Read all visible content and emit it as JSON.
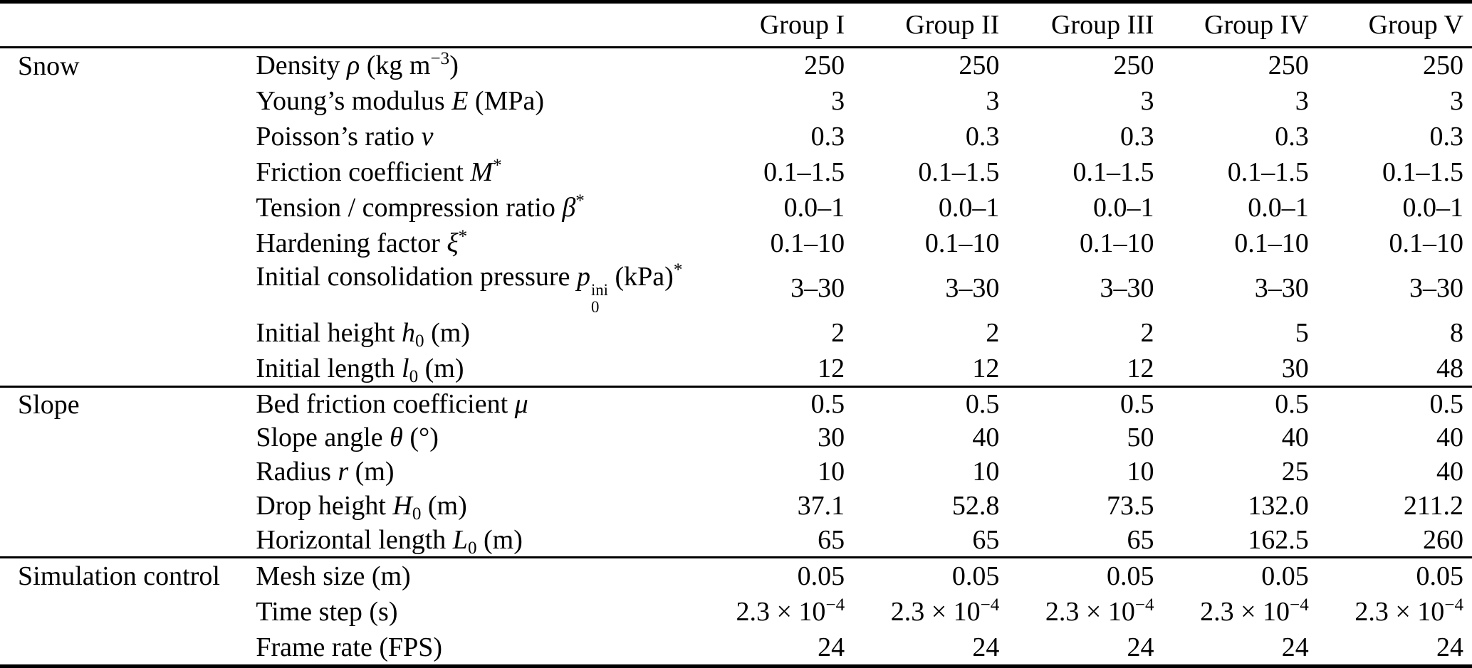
{
  "table": {
    "header": {
      "groups": [
        "Group I",
        "Group II",
        "Group III",
        "Group IV",
        "Group V"
      ]
    },
    "sections": [
      {
        "name": "Snow",
        "rows": [
          {
            "label": [
              {
                "t": "Density "
              },
              {
                "t": "ρ",
                "i": true
              },
              {
                "t": " (kg m"
              },
              {
                "t": "−3",
                "sup": true
              },
              {
                "t": ")"
              }
            ],
            "values": [
              "250",
              "250",
              "250",
              "250",
              "250"
            ]
          },
          {
            "label": [
              {
                "t": "Young’s modulus "
              },
              {
                "t": "E",
                "i": true
              },
              {
                "t": " (MPa)"
              }
            ],
            "values": [
              "3",
              "3",
              "3",
              "3",
              "3"
            ]
          },
          {
            "label": [
              {
                "t": "Poisson’s ratio "
              },
              {
                "t": "ν",
                "i": true
              }
            ],
            "values": [
              "0.3",
              "0.3",
              "0.3",
              "0.3",
              "0.3"
            ]
          },
          {
            "label": [
              {
                "t": "Friction coefficient "
              },
              {
                "t": "M",
                "i": true
              },
              {
                "t": "*",
                "sup": true
              }
            ],
            "values": [
              "0.1–1.5",
              "0.1–1.5",
              "0.1–1.5",
              "0.1–1.5",
              "0.1–1.5"
            ]
          },
          {
            "label": [
              {
                "t": "Tension / compression ratio "
              },
              {
                "t": "β",
                "i": true
              },
              {
                "t": "*",
                "sup": true
              }
            ],
            "values": [
              "0.0–1",
              "0.0–1",
              "0.0–1",
              "0.0–1",
              "0.0–1"
            ]
          },
          {
            "label": [
              {
                "t": "Hardening factor "
              },
              {
                "t": "ξ",
                "i": true
              },
              {
                "t": "*",
                "sup": true
              }
            ],
            "values": [
              "0.1–10",
              "0.1–10",
              "0.1–10",
              "0.1–10",
              "0.1–10"
            ]
          },
          {
            "label": [
              {
                "t": "Initial consolidation pressure "
              },
              {
                "t": "p",
                "i": true
              },
              {
                "stack": {
                  "sup": "ini",
                  "sub": "0"
                }
              },
              {
                "t": " (kPa)"
              },
              {
                "t": "*",
                "sup": true
              }
            ],
            "values": [
              "3–30",
              "3–30",
              "3–30",
              "3–30",
              "3–30"
            ]
          },
          {
            "label": [
              {
                "t": "Initial height "
              },
              {
                "t": "h",
                "i": true
              },
              {
                "t": "0",
                "sub": true
              },
              {
                "t": " (m)"
              }
            ],
            "values": [
              "2",
              "2",
              "2",
              "5",
              "8"
            ]
          },
          {
            "label": [
              {
                "t": "Initial length "
              },
              {
                "t": "l",
                "i": true
              },
              {
                "t": "0",
                "sub": true
              },
              {
                "t": " (m)"
              }
            ],
            "values": [
              "12",
              "12",
              "12",
              "30",
              "48"
            ]
          }
        ]
      },
      {
        "name": "Slope",
        "rows": [
          {
            "label": [
              {
                "t": "Bed friction coefficient "
              },
              {
                "t": "μ",
                "i": true
              }
            ],
            "values": [
              "0.5",
              "0.5",
              "0.5",
              "0.5",
              "0.5"
            ]
          },
          {
            "label": [
              {
                "t": "Slope angle "
              },
              {
                "t": "θ",
                "i": true
              },
              {
                "t": " (°)"
              }
            ],
            "values": [
              "30",
              "40",
              "50",
              "40",
              "40"
            ]
          },
          {
            "label": [
              {
                "t": "Radius "
              },
              {
                "t": "r",
                "i": true
              },
              {
                "t": " (m)"
              }
            ],
            "values": [
              "10",
              "10",
              "10",
              "25",
              "40"
            ]
          },
          {
            "label": [
              {
                "t": "Drop height "
              },
              {
                "t": "H",
                "i": true
              },
              {
                "t": "0",
                "sub": true
              },
              {
                "t": " (m)"
              }
            ],
            "values": [
              "37.1",
              "52.8",
              "73.5",
              "132.0",
              "211.2"
            ]
          },
          {
            "label": [
              {
                "t": "Horizontal length "
              },
              {
                "t": "L",
                "i": true
              },
              {
                "t": "0",
                "sub": true
              },
              {
                "t": " (m)"
              }
            ],
            "values": [
              "65",
              "65",
              "65",
              "162.5",
              "260"
            ]
          }
        ]
      },
      {
        "name": "Simulation control",
        "rows": [
          {
            "label": [
              {
                "t": "Mesh size (m)"
              }
            ],
            "values": [
              "0.05",
              "0.05",
              "0.05",
              "0.05",
              "0.05"
            ]
          },
          {
            "label": [
              {
                "t": "Time step (s)"
              }
            ],
            "values": [
              {
                "t": "2.3 × 10",
                "sup": "−4"
              },
              {
                "t": "2.3 × 10",
                "sup": "−4"
              },
              {
                "t": "2.3 × 10",
                "sup": "−4"
              },
              {
                "t": "2.3 × 10",
                "sup": "−4"
              },
              {
                "t": "2.3 × 10",
                "sup": "−4"
              }
            ]
          },
          {
            "label": [
              {
                "t": "Frame rate (FPS)"
              }
            ],
            "values": [
              "24",
              "24",
              "24",
              "24",
              "24"
            ]
          }
        ]
      }
    ]
  }
}
